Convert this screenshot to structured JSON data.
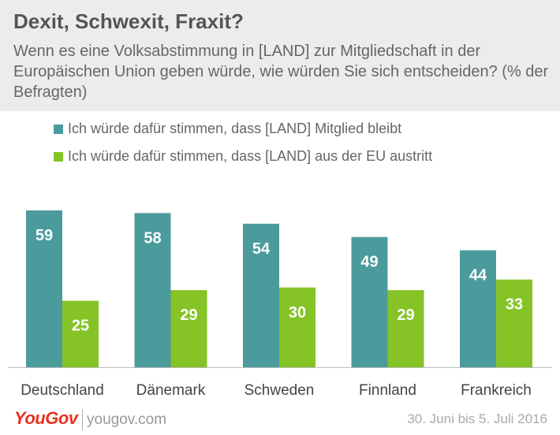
{
  "header": {
    "title": "Dexit, Schwexit, Fraxit?",
    "subtitle": "Wenn es eine Volksabstimmung in [LAND] zur Mitgliedschaft in der Europäischen Union geben würde, wie würden Sie sich entscheiden? (% der Befragten)"
  },
  "colors": {
    "teal": "#4b9b9c",
    "green": "#85c326"
  },
  "chart_data": {
    "type": "bar",
    "title": "Dexit, Schwexit, Fraxit?",
    "categories": [
      "Deutschland",
      "Dänemark",
      "Schweden",
      "Finnland",
      "Frankreich"
    ],
    "series": [
      {
        "name": "Ich würde dafür stimmen, dass [LAND] Mitglied bleibt",
        "values": [
          59,
          58,
          54,
          49,
          44
        ],
        "color": "#4b9b9c"
      },
      {
        "name": "Ich würde dafür stimmen, dass [LAND] aus der EU austritt",
        "values": [
          25,
          29,
          30,
          29,
          33
        ],
        "color": "#85c326"
      }
    ],
    "ylim": [
      0,
      59
    ],
    "legend": "top-left",
    "grid": false
  },
  "footer": {
    "logo": "YouGov",
    "site": "yougov.com",
    "date": "30. Juni bis 5. Juli 2016"
  }
}
